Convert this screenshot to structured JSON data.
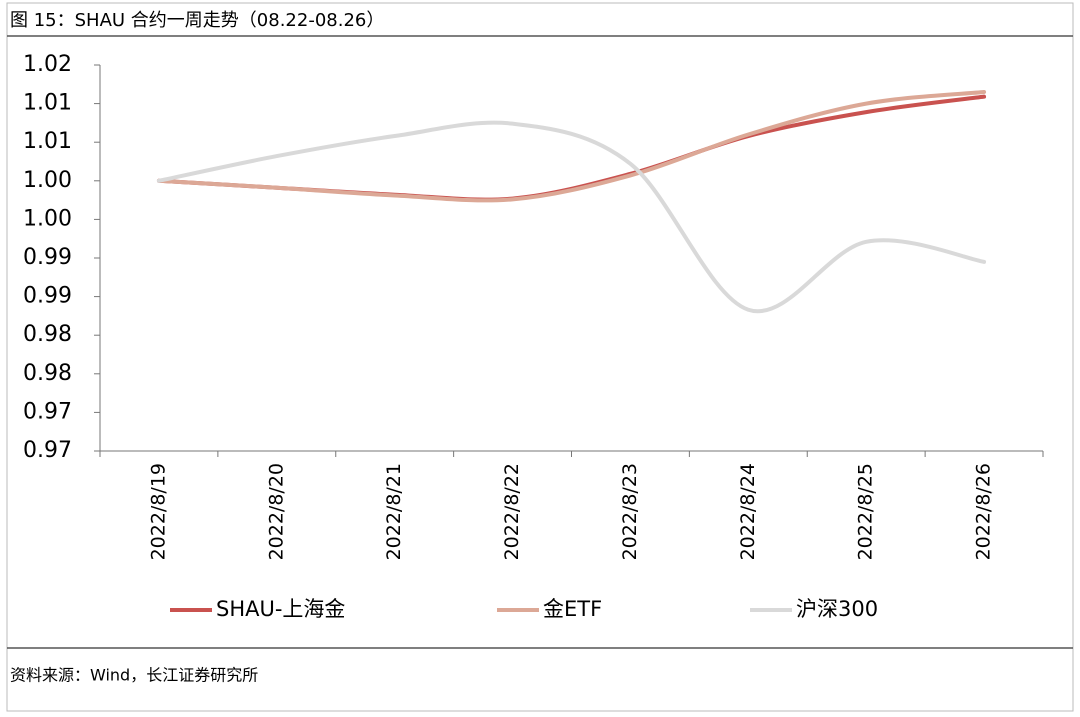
{
  "chart_data": {
    "type": "line",
    "title": "图 15：SHAU 合约一周走势（08.22-08.26）",
    "source": "资料来源：Wind，长江证券研究所",
    "categories": [
      "2022/8/19",
      "2022/8/20",
      "2022/8/21",
      "2022/8/22",
      "2022/8/23",
      "2022/8/24",
      "2022/8/25",
      "2022/8/26"
    ],
    "series": [
      {
        "name": "SHAU-上海金",
        "color": "#c9524f",
        "values": [
          1.0,
          0.9991,
          0.9982,
          0.9977,
          1.0009,
          1.0058,
          1.0089,
          1.0109
        ]
      },
      {
        "name": "金ETF",
        "color": "#dca896",
        "values": [
          1.0,
          0.9991,
          0.9981,
          0.9976,
          1.0007,
          1.006,
          1.01,
          1.0115
        ]
      },
      {
        "name": "沪深300",
        "color": "#d9d9d9",
        "values": [
          1.0,
          1.0032,
          1.0058,
          1.0074,
          1.0022,
          0.9833,
          0.9921,
          0.9895
        ]
      }
    ],
    "ylim": [
      0.965,
      1.015
    ],
    "yticks": [
      {
        "value": 0.965,
        "label": "0.97"
      },
      {
        "value": 0.97,
        "label": "0.97"
      },
      {
        "value": 0.975,
        "label": "0.98"
      },
      {
        "value": 0.98,
        "label": "0.98"
      },
      {
        "value": 0.985,
        "label": "0.99"
      },
      {
        "value": 0.99,
        "label": "0.99"
      },
      {
        "value": 0.995,
        "label": "1.00"
      },
      {
        "value": 1.0,
        "label": "1.00"
      },
      {
        "value": 1.005,
        "label": "1.01"
      },
      {
        "value": 1.01,
        "label": "1.01"
      },
      {
        "value": 1.015,
        "label": "1.02"
      }
    ],
    "grid": false,
    "legend": "bottom"
  }
}
